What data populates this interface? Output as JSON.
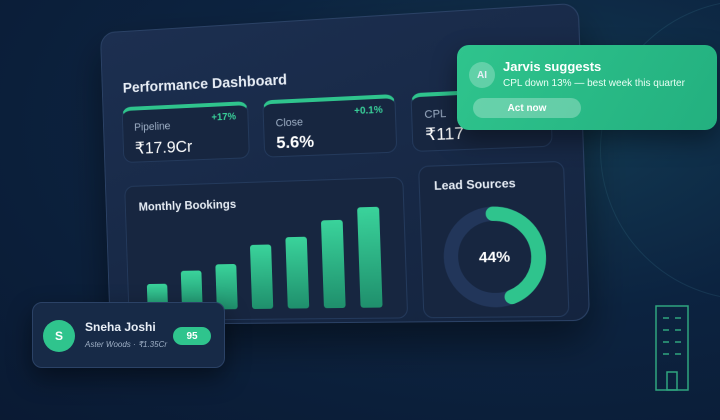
{
  "dashboard": {
    "title": "Performance Dashboard",
    "kpis": [
      {
        "label": "Pipeline",
        "value": "₹17.9Cr",
        "change": "+17%"
      },
      {
        "label": "Close",
        "value": "5.6%",
        "change": "+0.1%"
      },
      {
        "label": "CPL",
        "value": "₹117"
      }
    ],
    "monthly_bookings": {
      "title": "Monthly Bookings",
      "values": [
        27,
        40,
        46,
        65,
        72,
        88,
        100
      ]
    },
    "lead_sources": {
      "title": "Lead Sources",
      "value": 44,
      "label": "44%"
    }
  },
  "suggestion": {
    "avatar": "AI",
    "title": "Jarvis suggests",
    "text": "CPL down 13% — best week this quarter",
    "action": "Act now"
  },
  "lead": {
    "avatar": "S",
    "name": "Sneha Joshi",
    "detail": "Aster Woods · ₹1.35Cr",
    "score": 95
  }
}
